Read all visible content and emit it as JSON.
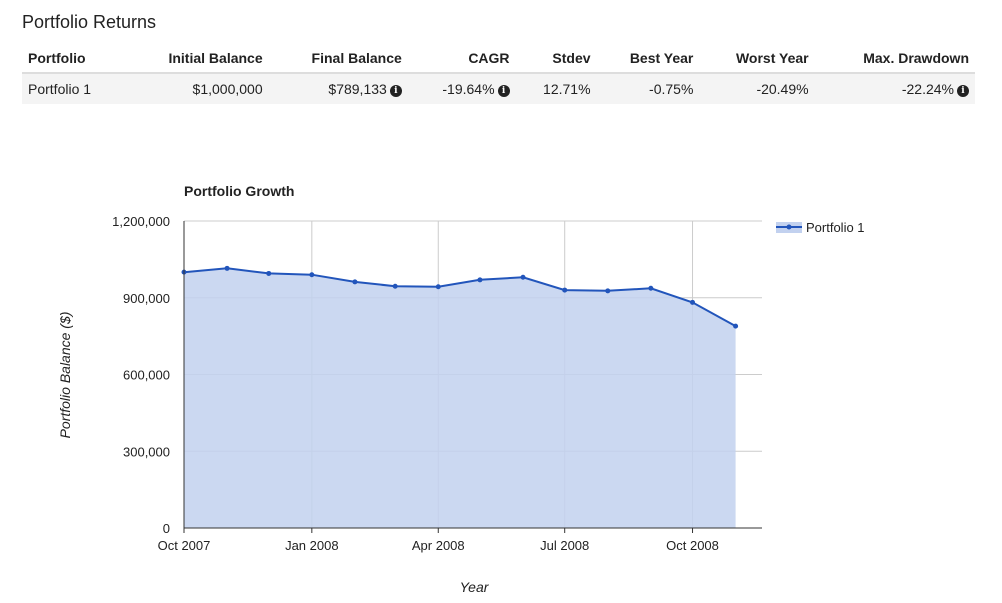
{
  "section_title": "Portfolio Returns",
  "table": {
    "headers": [
      "Portfolio",
      "Initial Balance",
      "Final Balance",
      "CAGR",
      "Stdev",
      "Best Year",
      "Worst Year",
      "Max. Drawdown"
    ],
    "rows": [
      {
        "portfolio": "Portfolio 1",
        "initial_balance": "$1,000,000",
        "final_balance": "$789,133",
        "cagr": "-19.64%",
        "stdev": "12.71%",
        "best_year": "-0.75%",
        "worst_year": "-20.49%",
        "max_drawdown": "-22.24%"
      }
    ],
    "info_icon": "info-circle-icon"
  },
  "colors": {
    "series_line": "#2255bb",
    "series_fill": "#c2d1ef",
    "grid": "#cccccc",
    "axis": "#333333"
  },
  "chart_data": {
    "type": "area",
    "title": "Portfolio Growth",
    "xlabel": "Year",
    "ylabel": "Portfolio Balance ($)",
    "ylim": [
      0,
      1200000
    ],
    "y_ticks": [
      0,
      300000,
      600000,
      900000,
      1200000
    ],
    "y_tick_labels": [
      "0",
      "300,000",
      "600,000",
      "900,000",
      "1,200,000"
    ],
    "x_ticks": [
      "2007-10",
      "2008-01",
      "2008-04",
      "2008-07",
      "2008-10"
    ],
    "x_tick_labels": [
      "Oct 2007",
      "Jan 2008",
      "Apr 2008",
      "Jul 2008",
      "Oct 2008"
    ],
    "x": [
      "2007-10",
      "2007-11",
      "2007-12",
      "2008-01",
      "2008-02",
      "2008-03",
      "2008-04",
      "2008-05",
      "2008-06",
      "2008-07",
      "2008-08",
      "2008-09",
      "2008-10",
      "2008-11"
    ],
    "series": [
      {
        "name": "Portfolio 1",
        "values": [
          1000000,
          1015000,
          995000,
          990000,
          962000,
          945000,
          943000,
          970000,
          980000,
          930000,
          927000,
          937000,
          882000,
          789133
        ]
      }
    ],
    "legend_position": "top-right",
    "grid": true
  }
}
